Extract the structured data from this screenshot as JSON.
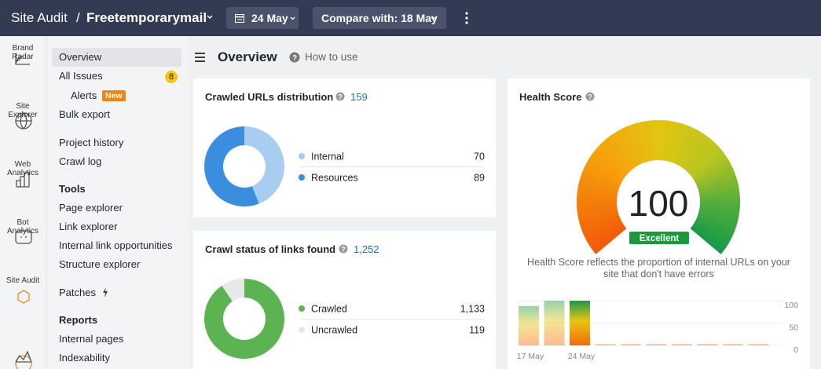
{
  "header": {
    "title": "Site Audit",
    "project": "Freetemporarymail",
    "date": "24 May",
    "compare": "Compare with: 18 May"
  },
  "rail": [
    "Brand Radar",
    "Site Explorer",
    "Web Analytics",
    "Bot Analytics",
    "Site Audit"
  ],
  "nav": {
    "overview": "Overview",
    "all_issues": "All Issues",
    "issues_count": 8,
    "alerts": "Alerts",
    "alerts_badge": "New",
    "bulk_export": "Bulk export",
    "project_history": "Project history",
    "crawl_log": "Crawl log",
    "tools_heading": "Tools",
    "tools": [
      "Page explorer",
      "Link explorer",
      "Internal link opportunities",
      "Structure explorer"
    ],
    "patches": "Patches",
    "reports_heading": "Reports",
    "reports": [
      "Internal pages",
      "Indexability"
    ]
  },
  "page": {
    "title": "Overview",
    "help": "How to use"
  },
  "crawled_urls": {
    "title": "Crawled URLs distribution",
    "total": 159,
    "segments": [
      {
        "name": "Internal",
        "value": 70,
        "color": "#a8cdf0"
      },
      {
        "name": "Resources",
        "value": 89,
        "color": "#3b8de0"
      }
    ]
  },
  "crawl_status": {
    "title": "Crawl status of links found",
    "total": "1,252",
    "segments": [
      {
        "name": "Crawled",
        "value": 1133,
        "label": "1,133",
        "color": "#5cb352"
      },
      {
        "name": "Uncrawled",
        "value": 119,
        "color": "#e6e8ea"
      }
    ]
  },
  "health": {
    "title": "Health Score",
    "score": 100,
    "lim": [
      0,
      100
    ],
    "rating": "Excellent",
    "note": "Health Score reflects the proportion of internal URLs on your site that don't have errors",
    "history": {
      "categories": [
        "17 May",
        null,
        "24 May",
        null,
        null,
        null,
        null,
        null,
        null,
        null
      ],
      "values": [
        88,
        100,
        100,
        0,
        0,
        0,
        0,
        0,
        0,
        0
      ],
      "ylim": [
        0,
        100
      ],
      "yticks": [
        0,
        50,
        100
      ]
    }
  }
}
